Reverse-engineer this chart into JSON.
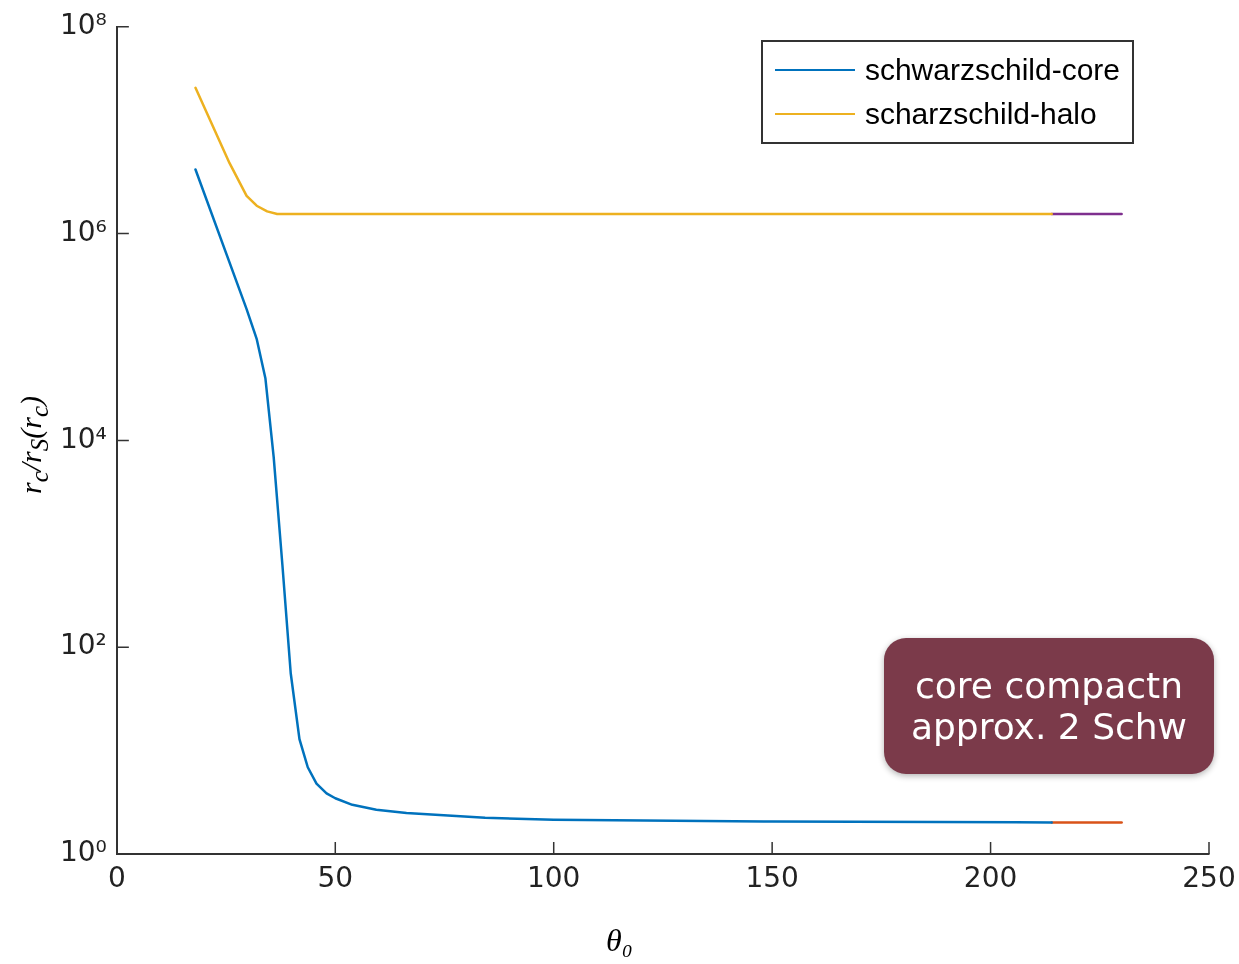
{
  "chart_data": {
    "type": "line",
    "xlabel": "θ₀",
    "ylabel": "r$_{c}$/r$_{S}$(r$_{c}$)",
    "xlim": [
      0,
      250
    ],
    "xticks": [
      0,
      50,
      100,
      150,
      200,
      250
    ],
    "ylim": [
      1,
      100000000
    ],
    "yticks": [
      {
        "value": 1,
        "label": "10⁰"
      },
      {
        "value": 100,
        "label": "10²"
      },
      {
        "value": 10000,
        "label": "10⁴"
      },
      {
        "value": 1000000,
        "label": "10⁶"
      },
      {
        "value": 100000000,
        "label": "10⁸"
      }
    ],
    "log": "y",
    "grid": false,
    "legend": "top right",
    "marker": "none",
    "line_style": "solid",
    "annotations": [
      "core compactn",
      "approx. 2 Schw"
    ],
    "series": [
      {
        "name": "schwarzschild-core",
        "color": "#0072bd",
        "x": [
          18.0,
          29.7,
          32.0,
          34.0,
          35.9,
          37.9,
          39.8,
          41.8,
          43.7,
          45.7,
          48.0,
          50.0,
          53.9,
          59.4,
          66.3,
          84.3,
          100,
          150,
          214
        ],
        "values": [
          4170000,
          186000,
          96000,
          40000,
          6900,
          620,
          56,
          12.9,
          6.9,
          4.8,
          3.86,
          3.46,
          2.99,
          2.68,
          2.49,
          2.24,
          2.15,
          2.06,
          2.02
        ]
      },
      {
        "name": "scharzschild-halo",
        "color": "#edb120",
        "x": [
          18.0,
          25.8,
          29.7,
          32.0,
          34.4,
          36.7,
          100,
          150,
          214
        ],
        "values": [
          25700000,
          4800000,
          2320000,
          1860000,
          1640000,
          1550000,
          1550000,
          1550000,
          1550000
        ]
      },
      {
        "color": "#7e2f8e",
        "x": [
          214,
          230
        ],
        "values": [
          1550000,
          1550000
        ]
      },
      {
        "color": "#d95319",
        "x": [
          214,
          230
        ],
        "values": [
          2.02,
          2.02
        ]
      }
    ]
  }
}
